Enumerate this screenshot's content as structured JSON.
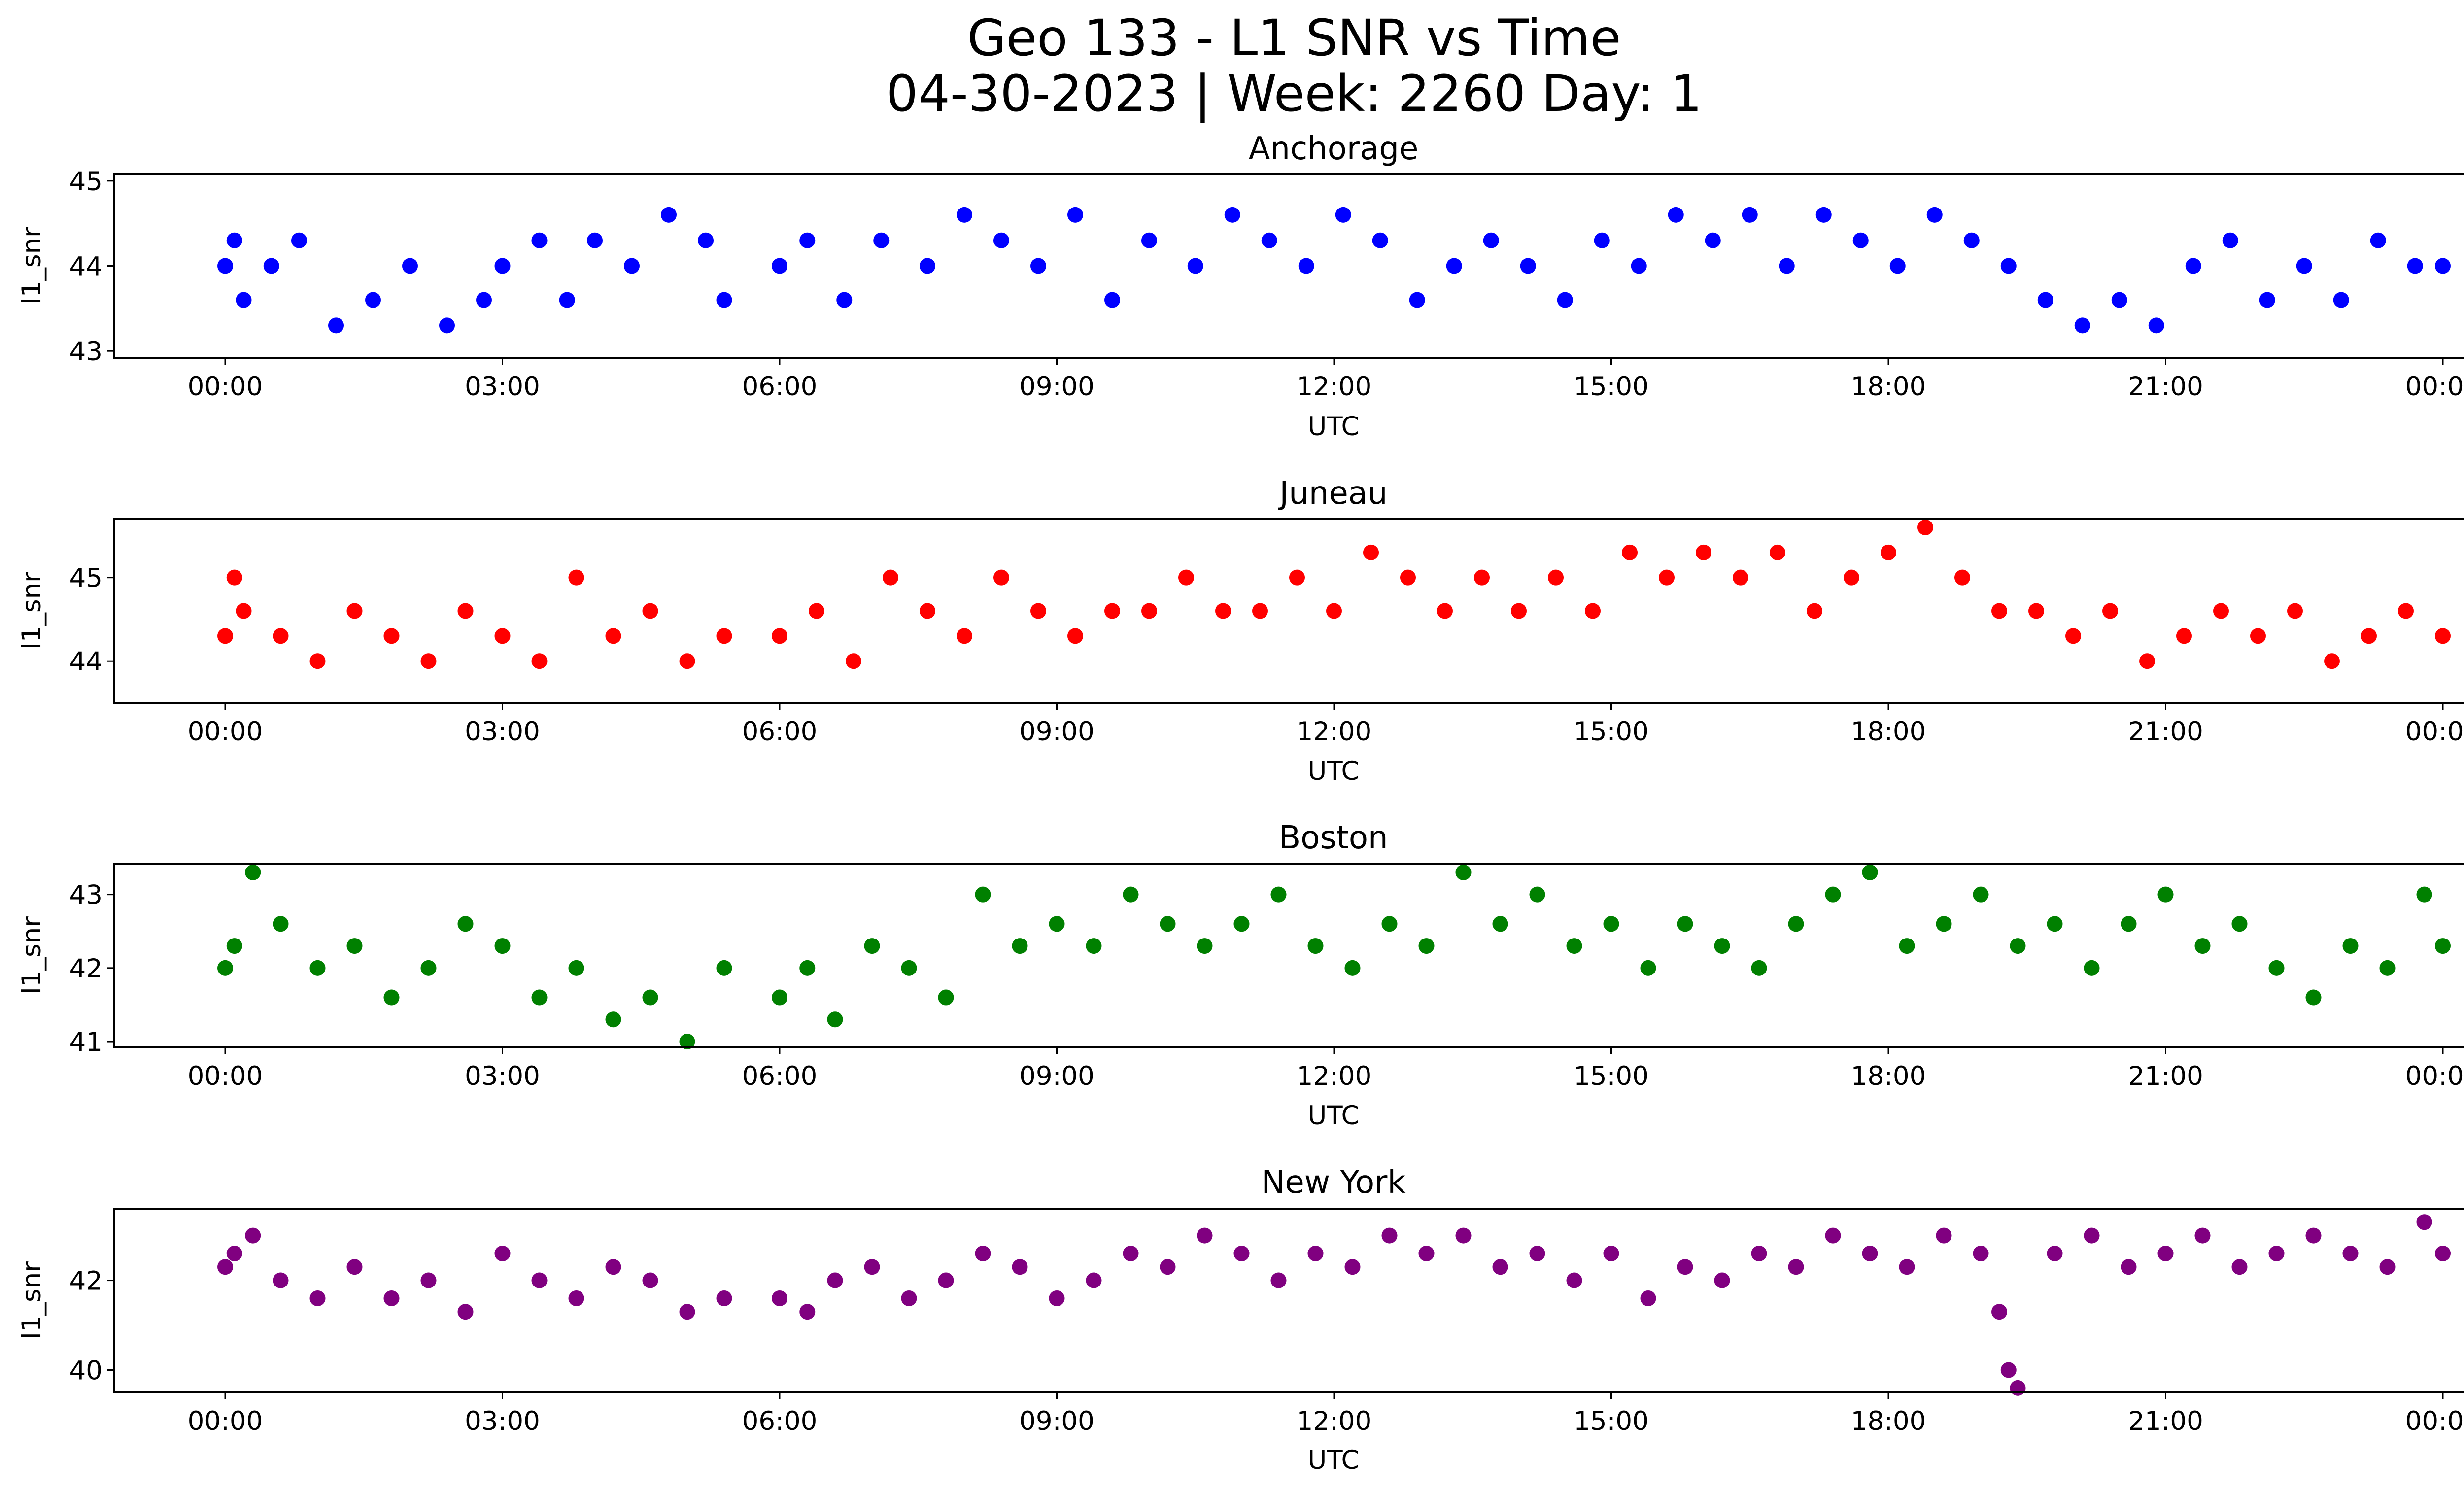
{
  "figure": {
    "title_line1": "Geo 133 - L1 SNR vs Time",
    "title_line2": "04-30-2023 | Week: 2260 Day: 1"
  },
  "chart_data": [
    {
      "type": "scatter",
      "title": "Anchorage",
      "xlabel": "UTC",
      "ylabel": "l1_snr",
      "color": "#0000ff",
      "x_ticks": [
        "00:00",
        "03:00",
        "06:00",
        "09:00",
        "12:00",
        "15:00",
        "18:00",
        "21:00",
        "00:00"
      ],
      "y_ticks": [
        43,
        44,
        45
      ],
      "xlim_hours": [
        -1.2,
        25.2
      ],
      "ylim": [
        42.92,
        45.08
      ],
      "data_gap_hours": [
        5.45,
        5.93
      ],
      "series": [
        {
          "values_hours": [
            0.0,
            0.1,
            0.2,
            0.5,
            0.8,
            1.2,
            1.6,
            2.0,
            2.4,
            2.8,
            3.0,
            3.4,
            3.7,
            4.0,
            4.4,
            4.8,
            5.2,
            5.4,
            6.0,
            6.3,
            6.7,
            7.1,
            7.6,
            8.0,
            8.4,
            8.8,
            9.2,
            9.6,
            10.0,
            10.5,
            10.9,
            11.3,
            11.7,
            12.1,
            12.5,
            12.9,
            13.3,
            13.7,
            14.1,
            14.5,
            14.9,
            15.3,
            15.7,
            16.1,
            16.5,
            16.9,
            17.3,
            17.7,
            18.1,
            18.5,
            18.9,
            19.3,
            19.7,
            20.1,
            20.5,
            20.9,
            21.3,
            21.7,
            22.1,
            22.5,
            22.9,
            23.3,
            23.7,
            24.0
          ],
          "values_snr": [
            44.0,
            44.3,
            43.6,
            44.0,
            44.3,
            43.3,
            43.6,
            44.0,
            43.3,
            43.6,
            44.0,
            44.3,
            43.6,
            44.3,
            44.0,
            44.6,
            44.3,
            43.6,
            44.0,
            44.3,
            43.6,
            44.3,
            44.0,
            44.6,
            44.3,
            44.0,
            44.6,
            43.6,
            44.3,
            44.0,
            44.6,
            44.3,
            44.0,
            44.6,
            44.3,
            43.6,
            44.0,
            44.3,
            44.0,
            43.6,
            44.3,
            44.0,
            44.6,
            44.3,
            44.6,
            44.0,
            44.6,
            44.3,
            44.0,
            44.6,
            44.3,
            44.0,
            43.6,
            43.3,
            43.6,
            43.3,
            44.0,
            44.3,
            43.6,
            44.0,
            43.6,
            44.3,
            44.0,
            44.0
          ]
        }
      ]
    },
    {
      "type": "scatter",
      "title": "Juneau",
      "xlabel": "UTC",
      "ylabel": "l1_snr",
      "color": "#ff0000",
      "x_ticks": [
        "00:00",
        "03:00",
        "06:00",
        "09:00",
        "12:00",
        "15:00",
        "18:00",
        "21:00",
        "00:00"
      ],
      "y_ticks": [
        44,
        45
      ],
      "xlim_hours": [
        -1.2,
        25.2
      ],
      "ylim": [
        43.5,
        45.7
      ],
      "data_gap_hours": [
        5.45,
        5.93
      ],
      "series": [
        {
          "values_hours": [
            0.0,
            0.1,
            0.2,
            0.6,
            1.0,
            1.4,
            1.8,
            2.2,
            2.6,
            3.0,
            3.4,
            3.8,
            4.2,
            4.6,
            5.0,
            5.4,
            6.0,
            6.4,
            6.8,
            7.2,
            7.6,
            8.0,
            8.4,
            8.8,
            9.2,
            9.6,
            10.0,
            10.4,
            10.8,
            11.2,
            11.6,
            12.0,
            12.4,
            12.8,
            13.2,
            13.6,
            14.0,
            14.4,
            14.8,
            15.2,
            15.6,
            16.0,
            16.4,
            16.8,
            17.2,
            17.6,
            18.0,
            18.4,
            18.8,
            19.2,
            19.6,
            20.0,
            20.4,
            20.8,
            21.2,
            21.6,
            22.0,
            22.4,
            22.8,
            23.2,
            23.6,
            24.0
          ],
          "values_snr": [
            44.3,
            45.0,
            44.6,
            44.3,
            44.0,
            44.6,
            44.3,
            44.0,
            44.6,
            44.3,
            44.0,
            45.0,
            44.3,
            44.6,
            44.0,
            44.3,
            44.3,
            44.6,
            44.0,
            45.0,
            44.6,
            44.3,
            45.0,
            44.6,
            44.3,
            44.6,
            44.6,
            45.0,
            44.6,
            44.6,
            45.0,
            44.6,
            45.3,
            45.0,
            44.6,
            45.0,
            44.6,
            45.0,
            44.6,
            45.3,
            45.0,
            45.3,
            45.0,
            45.3,
            44.6,
            45.0,
            45.3,
            45.6,
            45.0,
            44.6,
            44.6,
            44.3,
            44.6,
            44.0,
            44.3,
            44.6,
            44.3,
            44.6,
            44.0,
            44.3,
            44.6,
            44.3
          ]
        }
      ]
    },
    {
      "type": "scatter",
      "title": "Boston",
      "xlabel": "UTC",
      "ylabel": "l1_snr",
      "color": "#008000",
      "x_ticks": [
        "00:00",
        "03:00",
        "06:00",
        "09:00",
        "12:00",
        "15:00",
        "18:00",
        "21:00",
        "00:00"
      ],
      "y_ticks": [
        41,
        42,
        43
      ],
      "xlim_hours": [
        -1.2,
        25.2
      ],
      "ylim": [
        40.92,
        43.42
      ],
      "data_gap_hours": [
        5.45,
        5.93
      ],
      "series": [
        {
          "values_hours": [
            0.0,
            0.1,
            0.3,
            0.6,
            1.0,
            1.4,
            1.8,
            2.2,
            2.6,
            3.0,
            3.4,
            3.8,
            4.2,
            4.6,
            5.0,
            5.4,
            6.0,
            6.3,
            6.6,
            7.0,
            7.4,
            7.8,
            8.2,
            8.6,
            9.0,
            9.4,
            9.8,
            10.2,
            10.6,
            11.0,
            11.4,
            11.8,
            12.2,
            12.6,
            13.0,
            13.4,
            13.8,
            14.2,
            14.6,
            15.0,
            15.4,
            15.8,
            16.2,
            16.6,
            17.0,
            17.4,
            17.8,
            18.2,
            18.6,
            19.0,
            19.4,
            19.8,
            20.2,
            20.6,
            21.0,
            21.4,
            21.8,
            22.2,
            22.6,
            23.0,
            23.4,
            23.8,
            24.0
          ],
          "values_snr": [
            42.0,
            42.3,
            43.3,
            42.6,
            42.0,
            42.3,
            41.6,
            42.0,
            42.6,
            42.3,
            41.6,
            42.0,
            41.3,
            41.6,
            41.0,
            42.0,
            41.6,
            42.0,
            41.3,
            42.3,
            42.0,
            41.6,
            43.0,
            42.3,
            42.6,
            42.3,
            43.0,
            42.6,
            42.3,
            42.6,
            43.0,
            42.3,
            42.0,
            42.6,
            42.3,
            43.3,
            42.6,
            43.0,
            42.3,
            42.6,
            42.0,
            42.6,
            42.3,
            42.0,
            42.6,
            43.0,
            43.3,
            42.3,
            42.6,
            43.0,
            42.3,
            42.6,
            42.0,
            42.6,
            43.0,
            42.3,
            42.6,
            42.0,
            41.6,
            42.3,
            42.0,
            43.0,
            42.3
          ]
        }
      ]
    },
    {
      "type": "scatter",
      "title": "New York",
      "xlabel": "UTC",
      "ylabel": "l1_snr",
      "color": "#800080",
      "x_ticks": [
        "00:00",
        "03:00",
        "06:00",
        "09:00",
        "12:00",
        "15:00",
        "18:00",
        "21:00",
        "00:00"
      ],
      "y_ticks": [
        40,
        42
      ],
      "xlim_hours": [
        -1.2,
        25.2
      ],
      "ylim": [
        39.5,
        43.6
      ],
      "data_gap_hours": [
        5.45,
        5.93
      ],
      "series": [
        {
          "values_hours": [
            0.0,
            0.1,
            0.3,
            0.6,
            1.0,
            1.4,
            1.8,
            2.2,
            2.6,
            3.0,
            3.4,
            3.8,
            4.2,
            4.6,
            5.0,
            5.4,
            6.0,
            6.3,
            6.6,
            7.0,
            7.4,
            7.8,
            8.2,
            8.6,
            9.0,
            9.4,
            9.8,
            10.2,
            10.6,
            11.0,
            11.4,
            11.8,
            12.2,
            12.6,
            13.0,
            13.4,
            13.8,
            14.2,
            14.6,
            15.0,
            15.4,
            15.8,
            16.2,
            16.6,
            17.0,
            17.4,
            17.8,
            18.2,
            18.6,
            19.0,
            19.2,
            19.3,
            19.4,
            19.8,
            20.2,
            20.6,
            21.0,
            21.4,
            21.8,
            22.2,
            22.6,
            23.0,
            23.4,
            23.8,
            24.0
          ],
          "values_snr": [
            42.3,
            42.6,
            43.0,
            42.0,
            41.6,
            42.3,
            41.6,
            42.0,
            41.3,
            42.6,
            42.0,
            41.6,
            42.3,
            42.0,
            41.3,
            41.6,
            41.6,
            41.3,
            42.0,
            42.3,
            41.6,
            42.0,
            42.6,
            42.3,
            41.6,
            42.0,
            42.6,
            42.3,
            43.0,
            42.6,
            42.0,
            42.6,
            42.3,
            43.0,
            42.6,
            43.0,
            42.3,
            42.6,
            42.0,
            42.6,
            41.6,
            42.3,
            42.0,
            42.6,
            42.3,
            43.0,
            42.6,
            42.3,
            43.0,
            42.6,
            41.3,
            40.0,
            39.6,
            42.6,
            43.0,
            42.3,
            42.6,
            43.0,
            42.3,
            42.6,
            43.0,
            42.6,
            42.3,
            43.3,
            42.6
          ]
        }
      ]
    }
  ]
}
